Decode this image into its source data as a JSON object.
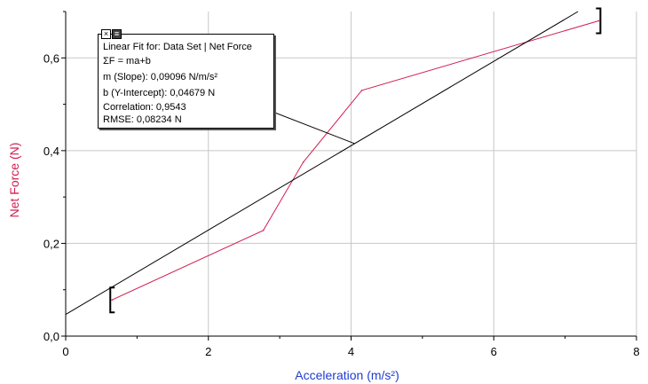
{
  "chart_data": {
    "type": "line",
    "title": "",
    "xlabel": "Acceleration (m/s²)",
    "ylabel": "Net Force (N)",
    "xlim": [
      0,
      8
    ],
    "ylim": [
      0,
      0.7
    ],
    "x_ticks": [
      "0",
      "2",
      "4",
      "6",
      "8"
    ],
    "y_ticks": [
      "0,0",
      "0,2",
      "0,4",
      "0,6"
    ],
    "grid": true,
    "series": [
      {
        "name": "Data Set | Net Force",
        "color": "#d01e50",
        "x": [
          0.65,
          2.77,
          3.33,
          4.15,
          7.47
        ],
        "y": [
          0.078,
          0.228,
          0.375,
          0.53,
          0.68
        ]
      }
    ],
    "fit": {
      "name": "Linear Fit",
      "color": "#000000",
      "slope": 0.09096,
      "intercept": 0.04679,
      "range": [
        0.65,
        7.47
      ]
    }
  },
  "fit_box": {
    "title": "Linear Fit for: Data Set | Net Force",
    "equation": "ΣF = ma+b",
    "slope": "m (Slope): 0,09096 N/m/s²",
    "intercept": "b (Y-Intercept): 0,04679 N",
    "correlation": "Correlation: 0,9543",
    "rmse": "RMSE: 0,08234 N",
    "close_glyph": "×",
    "menu_glyph": "≡"
  },
  "colors": {
    "ylabel": "#d01e50",
    "xlabel": "#1e3cd0",
    "grid": "#c8c8c8",
    "axis": "#000000"
  }
}
